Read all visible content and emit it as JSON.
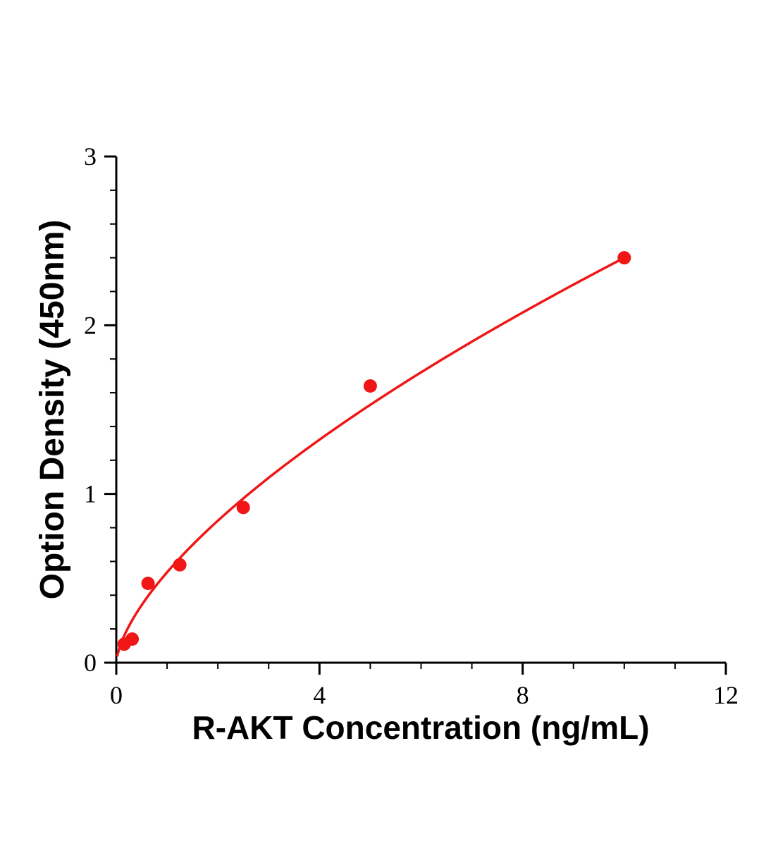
{
  "page": {
    "background_color": "#ffffff"
  },
  "chart_data": {
    "type": "scatter",
    "title": "",
    "xlabel": "R-AKT Concentration (ng/mL)",
    "ylabel": "Option Density (450nm)",
    "x": [
      0.156,
      0.313,
      0.625,
      1.25,
      2.5,
      5,
      10
    ],
    "y": [
      0.11,
      0.14,
      0.47,
      0.58,
      0.92,
      1.64,
      2.4
    ],
    "xlim": [
      0,
      12
    ],
    "ylim": [
      0,
      3
    ],
    "x_major_ticks": [
      0,
      4,
      8,
      12
    ],
    "y_major_ticks": [
      0,
      1,
      2,
      3
    ],
    "x_minor_step": 1,
    "y_minor_step": 0.2,
    "grid": false,
    "legend_position": "none",
    "marker_color": "#f01616",
    "line_color": "#f01616",
    "axis_color": "#000000",
    "fit": {
      "type": "power",
      "a": 0.536,
      "b": 0.651,
      "x_start": 0.02,
      "x_end": 10
    }
  }
}
